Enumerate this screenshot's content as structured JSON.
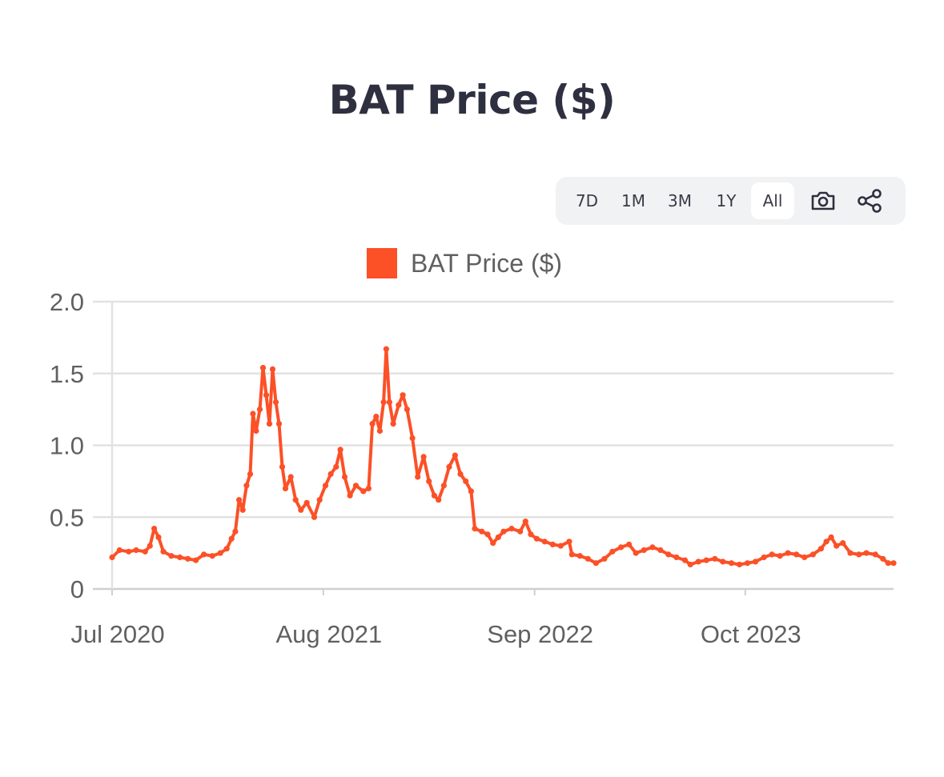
{
  "title": "BAT Price ($)",
  "toolbar": {
    "ranges": [
      "7D",
      "1M",
      "3M",
      "1Y",
      "All"
    ],
    "active_range": "All",
    "icons": [
      "camera-icon",
      "share-icon"
    ]
  },
  "colors": {
    "series": "#fc5027",
    "grid": "#e2e2e2",
    "axis_text": "#606060",
    "title": "#2e3040"
  },
  "chart_data": {
    "type": "line",
    "title": "BAT Price ($)",
    "legend": "top-center",
    "grid": true,
    "xlabel": "",
    "ylabel": "",
    "ylim": [
      0,
      2.0
    ],
    "y_ticks": [
      "0",
      "0.5",
      "1.0",
      "1.5",
      "2.0"
    ],
    "x_ticks": [
      {
        "label": "Jul 2020",
        "date": "2020-07-01"
      },
      {
        "label": "Aug 2021",
        "date": "2021-08-01"
      },
      {
        "label": "Sep 2022",
        "date": "2022-09-01"
      },
      {
        "label": "Oct 2023",
        "date": "2023-10-01"
      }
    ],
    "series": [
      {
        "name": "BAT Price ($)",
        "points": [
          [
            "2020-07-01",
            0.22
          ],
          [
            "2020-07-15",
            0.27
          ],
          [
            "2020-08-01",
            0.26
          ],
          [
            "2020-08-15",
            0.27
          ],
          [
            "2020-09-01",
            0.26
          ],
          [
            "2020-09-10",
            0.3
          ],
          [
            "2020-09-18",
            0.42
          ],
          [
            "2020-09-26",
            0.36
          ],
          [
            "2020-10-05",
            0.26
          ],
          [
            "2020-10-20",
            0.23
          ],
          [
            "2020-11-05",
            0.22
          ],
          [
            "2020-11-20",
            0.21
          ],
          [
            "2020-12-05",
            0.2
          ],
          [
            "2020-12-20",
            0.24
          ],
          [
            "2021-01-05",
            0.23
          ],
          [
            "2021-01-20",
            0.25
          ],
          [
            "2021-02-01",
            0.28
          ],
          [
            "2021-02-10",
            0.35
          ],
          [
            "2021-02-17",
            0.4
          ],
          [
            "2021-02-24",
            0.62
          ],
          [
            "2021-03-03",
            0.55
          ],
          [
            "2021-03-10",
            0.72
          ],
          [
            "2021-03-17",
            0.8
          ],
          [
            "2021-03-22",
            1.22
          ],
          [
            "2021-03-28",
            1.1
          ],
          [
            "2021-04-04",
            1.25
          ],
          [
            "2021-04-10",
            1.54
          ],
          [
            "2021-04-16",
            1.35
          ],
          [
            "2021-04-22",
            1.15
          ],
          [
            "2021-04-28",
            1.53
          ],
          [
            "2021-05-04",
            1.3
          ],
          [
            "2021-05-10",
            1.15
          ],
          [
            "2021-05-16",
            0.85
          ],
          [
            "2021-05-22",
            0.7
          ],
          [
            "2021-06-01",
            0.78
          ],
          [
            "2021-06-10",
            0.62
          ],
          [
            "2021-06-20",
            0.55
          ],
          [
            "2021-07-01",
            0.6
          ],
          [
            "2021-07-15",
            0.5
          ],
          [
            "2021-07-25",
            0.62
          ],
          [
            "2021-08-05",
            0.72
          ],
          [
            "2021-08-15",
            0.8
          ],
          [
            "2021-08-25",
            0.85
          ],
          [
            "2021-09-02",
            0.97
          ],
          [
            "2021-09-10",
            0.78
          ],
          [
            "2021-09-20",
            0.65
          ],
          [
            "2021-10-01",
            0.72
          ],
          [
            "2021-10-15",
            0.68
          ],
          [
            "2021-10-25",
            0.7
          ],
          [
            "2021-11-01",
            1.15
          ],
          [
            "2021-11-08",
            1.2
          ],
          [
            "2021-11-15",
            1.1
          ],
          [
            "2021-11-22",
            1.3
          ],
          [
            "2021-11-27",
            1.67
          ],
          [
            "2021-12-03",
            1.3
          ],
          [
            "2021-12-10",
            1.15
          ],
          [
            "2021-12-20",
            1.28
          ],
          [
            "2021-12-28",
            1.35
          ],
          [
            "2022-01-05",
            1.25
          ],
          [
            "2022-01-15",
            1.05
          ],
          [
            "2022-01-25",
            0.78
          ],
          [
            "2022-02-05",
            0.92
          ],
          [
            "2022-02-15",
            0.75
          ],
          [
            "2022-02-25",
            0.65
          ],
          [
            "2022-03-05",
            0.62
          ],
          [
            "2022-03-15",
            0.72
          ],
          [
            "2022-03-25",
            0.85
          ],
          [
            "2022-04-05",
            0.93
          ],
          [
            "2022-04-15",
            0.8
          ],
          [
            "2022-04-25",
            0.75
          ],
          [
            "2022-05-05",
            0.68
          ],
          [
            "2022-05-12",
            0.42
          ],
          [
            "2022-05-25",
            0.4
          ],
          [
            "2022-06-05",
            0.38
          ],
          [
            "2022-06-15",
            0.32
          ],
          [
            "2022-06-25",
            0.36
          ],
          [
            "2022-07-05",
            0.4
          ],
          [
            "2022-07-20",
            0.42
          ],
          [
            "2022-08-05",
            0.4
          ],
          [
            "2022-08-15",
            0.47
          ],
          [
            "2022-08-25",
            0.38
          ],
          [
            "2022-09-05",
            0.35
          ],
          [
            "2022-09-20",
            0.33
          ],
          [
            "2022-10-05",
            0.31
          ],
          [
            "2022-10-20",
            0.3
          ],
          [
            "2022-11-05",
            0.33
          ],
          [
            "2022-11-10",
            0.24
          ],
          [
            "2022-11-25",
            0.23
          ],
          [
            "2022-12-10",
            0.21
          ],
          [
            "2022-12-25",
            0.18
          ],
          [
            "2023-01-10",
            0.21
          ],
          [
            "2023-01-25",
            0.26
          ],
          [
            "2023-02-10",
            0.29
          ],
          [
            "2023-02-25",
            0.31
          ],
          [
            "2023-03-10",
            0.25
          ],
          [
            "2023-03-25",
            0.27
          ],
          [
            "2023-04-10",
            0.29
          ],
          [
            "2023-04-25",
            0.27
          ],
          [
            "2023-05-10",
            0.24
          ],
          [
            "2023-05-25",
            0.22
          ],
          [
            "2023-06-10",
            0.2
          ],
          [
            "2023-06-20",
            0.17
          ],
          [
            "2023-07-05",
            0.19
          ],
          [
            "2023-07-20",
            0.2
          ],
          [
            "2023-08-05",
            0.21
          ],
          [
            "2023-08-20",
            0.19
          ],
          [
            "2023-09-05",
            0.18
          ],
          [
            "2023-09-20",
            0.17
          ],
          [
            "2023-10-05",
            0.18
          ],
          [
            "2023-10-20",
            0.19
          ],
          [
            "2023-11-05",
            0.22
          ],
          [
            "2023-11-20",
            0.24
          ],
          [
            "2023-12-05",
            0.23
          ],
          [
            "2023-12-20",
            0.25
          ],
          [
            "2024-01-05",
            0.24
          ],
          [
            "2024-01-20",
            0.22
          ],
          [
            "2024-02-05",
            0.24
          ],
          [
            "2024-02-20",
            0.28
          ],
          [
            "2024-03-01",
            0.33
          ],
          [
            "2024-03-10",
            0.36
          ],
          [
            "2024-03-20",
            0.3
          ],
          [
            "2024-04-01",
            0.32
          ],
          [
            "2024-04-15",
            0.25
          ],
          [
            "2024-05-01",
            0.24
          ],
          [
            "2024-05-15",
            0.25
          ],
          [
            "2024-06-01",
            0.24
          ],
          [
            "2024-06-15",
            0.21
          ],
          [
            "2024-06-25",
            0.18
          ],
          [
            "2024-07-05",
            0.18
          ]
        ]
      }
    ]
  }
}
